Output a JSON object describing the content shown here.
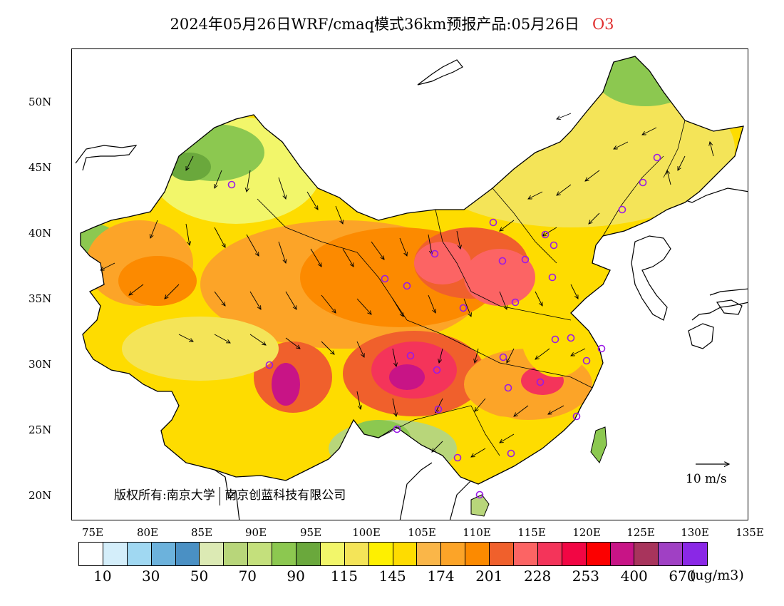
{
  "title": {
    "main": "2024年05月26日WRF/cmaq模式36km预报产品:05月26日",
    "species": "O3"
  },
  "map": {
    "lat_labels": [
      "50N",
      "45N",
      "40N",
      "35N",
      "30N",
      "25N",
      "20N"
    ],
    "lon_labels": [
      "75E",
      "80E",
      "85E",
      "90E",
      "95E",
      "100E",
      "105E",
      "110E",
      "115E",
      "120E",
      "125E",
      "130E",
      "135E"
    ],
    "copyright_left": "版权所有:南京大学",
    "copyright_right": "南京创蓝科技有限公司",
    "wind_reference": "10 m/s"
  },
  "legend": {
    "colors": [
      "#ffffff",
      "#d4eefa",
      "#a0d8f2",
      "#6cb2dc",
      "#4a90c4",
      "#dceab4",
      "#b8d67a",
      "#c4e07c",
      "#8cc850",
      "#6aa83c",
      "#f2f66a",
      "#f4e458",
      "#fef000",
      "#fedc00",
      "#fab648",
      "#fca428",
      "#fc8a00",
      "#f0602c",
      "#fc6464",
      "#f4345a",
      "#f20644",
      "#fc0000",
      "#c81486",
      "#a8345c",
      "#a040c4",
      "#8a28e6"
    ],
    "labels": [
      "10",
      "30",
      "50",
      "70",
      "90",
      "115",
      "145",
      "174",
      "201",
      "228",
      "253",
      "400",
      "670"
    ],
    "unit": "(ug/m3)"
  }
}
